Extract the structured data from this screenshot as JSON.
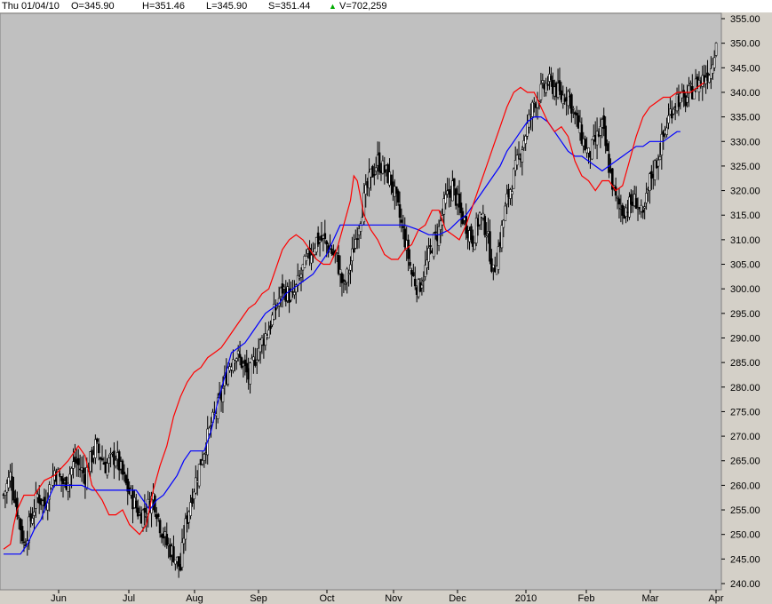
{
  "header": {
    "date": "Thu 01/04/10",
    "open": "O=345.90",
    "high": "H=351.46",
    "low": "L=345.90",
    "settle": "S=351.44",
    "arrow": "▲",
    "volume": "V=702,259"
  },
  "colors": {
    "plot_bg": "#c0c0c0",
    "price": "#000000",
    "fast_line": "#ff0000",
    "slow_line": "#0000ff"
  },
  "chart_data": {
    "type": "candlestick",
    "title": "",
    "ylim": [
      240,
      355
    ],
    "y_ticks": [
      "355.00",
      "350.00",
      "345.00",
      "340.00",
      "335.00",
      "330.00",
      "325.00",
      "320.00",
      "315.00",
      "310.00",
      "305.00",
      "300.00",
      "295.00",
      "290.00",
      "285.00",
      "280.00",
      "275.00",
      "270.00",
      "265.00",
      "260.00",
      "255.00",
      "250.00",
      "245.00",
      "240.00"
    ],
    "x_labels": [
      "Jun",
      "Jul",
      "Aug",
      "Sep",
      "Oct",
      "Nov",
      "Dec",
      "2010",
      "Feb",
      "Mar",
      "Apr"
    ],
    "close_path": [
      [
        0,
        258
      ],
      [
        4,
        262
      ],
      [
        8,
        255
      ],
      [
        12,
        248
      ],
      [
        16,
        253
      ],
      [
        20,
        258
      ],
      [
        24,
        256
      ],
      [
        30,
        263
      ],
      [
        36,
        260
      ],
      [
        42,
        265
      ],
      [
        48,
        262
      ],
      [
        54,
        268
      ],
      [
        60,
        264
      ],
      [
        66,
        266
      ],
      [
        72,
        260
      ],
      [
        76,
        257
      ],
      [
        80,
        254
      ],
      [
        84,
        255
      ],
      [
        88,
        258
      ],
      [
        92,
        252
      ],
      [
        96,
        248
      ],
      [
        100,
        246
      ],
      [
        104,
        243
      ],
      [
        106,
        250
      ],
      [
        110,
        257
      ],
      [
        116,
        265
      ],
      [
        122,
        272
      ],
      [
        128,
        278
      ],
      [
        132,
        284
      ],
      [
        136,
        287
      ],
      [
        140,
        285
      ],
      [
        144,
        282
      ],
      [
        150,
        288
      ],
      [
        156,
        292
      ],
      [
        160,
        296
      ],
      [
        164,
        300
      ],
      [
        170,
        298
      ],
      [
        176,
        304
      ],
      [
        180,
        307
      ],
      [
        184,
        310
      ],
      [
        188,
        310
      ],
      [
        192,
        308
      ],
      [
        196,
        306
      ],
      [
        200,
        300
      ],
      [
        204,
        305
      ],
      [
        208,
        312
      ],
      [
        212,
        318
      ],
      [
        216,
        323
      ],
      [
        220,
        326
      ],
      [
        224,
        324
      ],
      [
        228,
        322
      ],
      [
        232,
        316
      ],
      [
        236,
        310
      ],
      [
        240,
        303
      ],
      [
        244,
        300
      ],
      [
        248,
        304
      ],
      [
        252,
        309
      ],
      [
        256,
        312
      ],
      [
        260,
        318
      ],
      [
        264,
        321
      ],
      [
        268,
        316
      ],
      [
        272,
        313
      ],
      [
        276,
        310
      ],
      [
        280,
        315
      ],
      [
        284,
        312
      ],
      [
        288,
        303
      ],
      [
        292,
        310
      ],
      [
        296,
        318
      ],
      [
        300,
        323
      ],
      [
        304,
        328
      ],
      [
        308,
        333
      ],
      [
        312,
        338
      ],
      [
        316,
        340
      ],
      [
        320,
        342
      ],
      [
        324,
        341
      ],
      [
        328,
        339
      ],
      [
        332,
        340
      ],
      [
        336,
        335
      ],
      [
        340,
        331
      ],
      [
        344,
        327
      ],
      [
        348,
        330
      ],
      [
        352,
        333
      ],
      [
        356,
        325
      ],
      [
        360,
        318
      ],
      [
        364,
        316
      ],
      [
        368,
        317
      ],
      [
        372,
        318
      ],
      [
        376,
        314
      ],
      [
        380,
        322
      ],
      [
        384,
        326
      ],
      [
        388,
        331
      ],
      [
        392,
        336
      ],
      [
        396,
        339
      ],
      [
        400,
        338
      ],
      [
        404,
        340
      ],
      [
        408,
        342
      ],
      [
        412,
        343
      ],
      [
        416,
        345
      ],
      [
        419,
        351
      ]
    ],
    "fast_ma": [
      [
        0,
        247
      ],
      [
        4,
        248
      ],
      [
        6,
        252
      ],
      [
        8,
        255
      ],
      [
        12,
        258
      ],
      [
        18,
        258
      ],
      [
        24,
        261
      ],
      [
        30,
        262
      ],
      [
        38,
        265
      ],
      [
        44,
        268
      ],
      [
        48,
        266
      ],
      [
        52,
        260
      ],
      [
        58,
        257
      ],
      [
        62,
        254
      ],
      [
        66,
        254
      ],
      [
        70,
        255
      ],
      [
        74,
        252
      ],
      [
        80,
        250
      ],
      [
        84,
        252
      ],
      [
        88,
        259
      ],
      [
        92,
        264
      ],
      [
        96,
        268
      ],
      [
        100,
        274
      ],
      [
        104,
        278
      ],
      [
        108,
        281
      ],
      [
        112,
        283
      ],
      [
        116,
        284
      ],
      [
        120,
        286
      ],
      [
        124,
        287
      ],
      [
        128,
        288
      ],
      [
        132,
        290
      ],
      [
        136,
        292
      ],
      [
        140,
        294
      ],
      [
        144,
        296
      ],
      [
        148,
        297
      ],
      [
        152,
        299
      ],
      [
        156,
        300
      ],
      [
        160,
        304
      ],
      [
        164,
        308
      ],
      [
        168,
        310
      ],
      [
        172,
        311
      ],
      [
        176,
        310
      ],
      [
        180,
        308
      ],
      [
        184,
        306
      ],
      [
        188,
        305
      ],
      [
        192,
        305
      ],
      [
        196,
        308
      ],
      [
        200,
        313
      ],
      [
        204,
        318
      ],
      [
        206,
        323
      ],
      [
        208,
        322
      ],
      [
        212,
        315
      ],
      [
        216,
        312
      ],
      [
        220,
        310
      ],
      [
        224,
        307
      ],
      [
        228,
        306
      ],
      [
        232,
        306
      ],
      [
        236,
        308
      ],
      [
        240,
        309
      ],
      [
        244,
        312
      ],
      [
        248,
        313
      ],
      [
        252,
        316
      ],
      [
        256,
        316
      ],
      [
        260,
        312
      ],
      [
        264,
        311
      ],
      [
        268,
        310
      ],
      [
        272,
        313
      ],
      [
        276,
        317
      ],
      [
        280,
        321
      ],
      [
        284,
        325
      ],
      [
        288,
        329
      ],
      [
        292,
        333
      ],
      [
        296,
        337
      ],
      [
        300,
        340
      ],
      [
        304,
        341
      ],
      [
        308,
        340
      ],
      [
        312,
        340
      ],
      [
        316,
        337
      ],
      [
        320,
        334
      ],
      [
        324,
        332
      ],
      [
        328,
        333
      ],
      [
        332,
        331
      ],
      [
        336,
        326
      ],
      [
        340,
        323
      ],
      [
        344,
        322
      ],
      [
        348,
        320
      ],
      [
        352,
        322
      ],
      [
        356,
        322
      ],
      [
        360,
        320
      ],
      [
        364,
        321
      ],
      [
        368,
        326
      ],
      [
        372,
        331
      ],
      [
        376,
        335
      ],
      [
        380,
        337
      ],
      [
        384,
        338
      ],
      [
        388,
        339
      ],
      [
        392,
        339
      ],
      [
        396,
        340
      ],
      [
        400,
        340
      ],
      [
        404,
        340
      ],
      [
        408,
        341
      ],
      [
        412,
        342
      ]
    ],
    "slow_ma": [
      [
        0,
        246
      ],
      [
        6,
        246
      ],
      [
        10,
        246
      ],
      [
        14,
        248
      ],
      [
        18,
        251
      ],
      [
        22,
        253
      ],
      [
        26,
        257
      ],
      [
        30,
        260
      ],
      [
        38,
        260
      ],
      [
        46,
        260
      ],
      [
        52,
        259
      ],
      [
        60,
        259
      ],
      [
        66,
        259
      ],
      [
        70,
        259
      ],
      [
        74,
        259
      ],
      [
        78,
        259
      ],
      [
        82,
        257
      ],
      [
        86,
        255
      ],
      [
        90,
        257
      ],
      [
        94,
        258
      ],
      [
        98,
        260
      ],
      [
        102,
        262
      ],
      [
        106,
        265
      ],
      [
        110,
        267
      ],
      [
        114,
        267
      ],
      [
        118,
        267
      ],
      [
        122,
        271
      ],
      [
        126,
        277
      ],
      [
        130,
        282
      ],
      [
        134,
        287
      ],
      [
        138,
        288
      ],
      [
        142,
        289
      ],
      [
        146,
        291
      ],
      [
        150,
        293
      ],
      [
        154,
        295
      ],
      [
        158,
        296
      ],
      [
        162,
        297
      ],
      [
        166,
        299
      ],
      [
        170,
        300
      ],
      [
        174,
        301
      ],
      [
        178,
        302
      ],
      [
        182,
        303
      ],
      [
        186,
        305
      ],
      [
        190,
        307
      ],
      [
        194,
        310
      ],
      [
        198,
        313
      ],
      [
        204,
        313
      ],
      [
        212,
        313
      ],
      [
        220,
        313
      ],
      [
        228,
        313
      ],
      [
        236,
        313
      ],
      [
        244,
        312
      ],
      [
        250,
        311
      ],
      [
        256,
        311
      ],
      [
        262,
        312
      ],
      [
        268,
        314
      ],
      [
        272,
        315
      ],
      [
        276,
        317
      ],
      [
        280,
        319
      ],
      [
        284,
        321
      ],
      [
        288,
        323
      ],
      [
        292,
        325
      ],
      [
        296,
        328
      ],
      [
        300,
        330
      ],
      [
        304,
        332
      ],
      [
        308,
        334
      ],
      [
        312,
        335
      ],
      [
        316,
        335
      ],
      [
        320,
        334
      ],
      [
        324,
        332
      ],
      [
        328,
        330
      ],
      [
        332,
        328
      ],
      [
        336,
        327
      ],
      [
        340,
        327
      ],
      [
        344,
        326
      ],
      [
        348,
        325
      ],
      [
        352,
        324
      ],
      [
        356,
        325
      ],
      [
        360,
        326
      ],
      [
        364,
        327
      ],
      [
        368,
        328
      ],
      [
        372,
        329
      ],
      [
        376,
        329
      ],
      [
        380,
        330
      ],
      [
        384,
        330
      ],
      [
        388,
        330
      ],
      [
        392,
        331
      ],
      [
        396,
        332
      ],
      [
        398,
        332
      ]
    ]
  }
}
